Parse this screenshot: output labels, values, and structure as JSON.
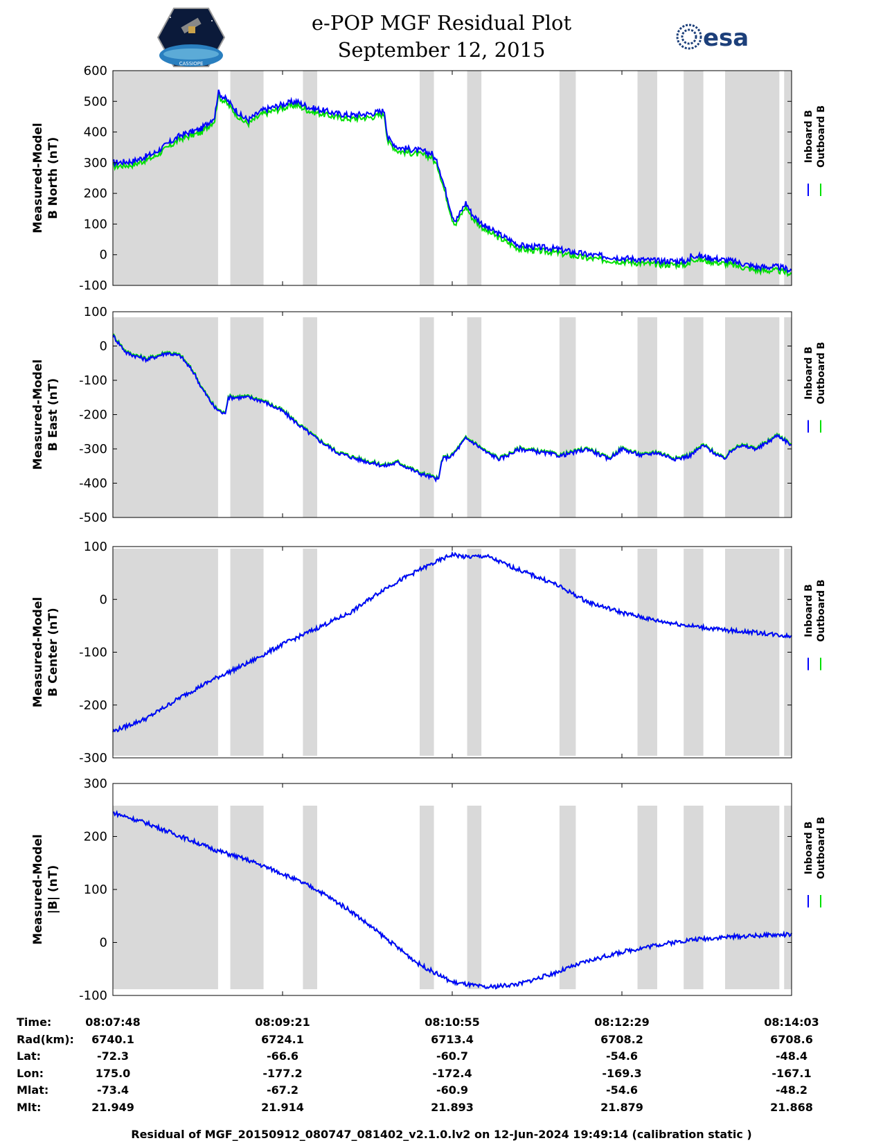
{
  "header": {
    "title_line1": "e-POP MGF Residual Plot",
    "title_line2": "September 12, 2015",
    "left_logo_text": "CASSIOPE",
    "right_logo_text": "esa"
  },
  "colors": {
    "inboard": "#0000ff",
    "outboard": "#00e000",
    "shade": "#d9d9d9"
  },
  "legend": {
    "inboard": "Inboard B",
    "outboard": "Outboard B"
  },
  "shaded_intervals": [
    [
      0,
      0.155
    ],
    [
      0.173,
      0.222
    ],
    [
      0.28,
      0.301
    ],
    [
      0.452,
      0.473
    ],
    [
      0.522,
      0.543
    ],
    [
      0.658,
      0.682
    ],
    [
      0.773,
      0.802
    ],
    [
      0.841,
      0.87
    ],
    [
      0.902,
      0.982
    ],
    [
      0.989,
      1.0
    ]
  ],
  "chart_data": [
    {
      "type": "line",
      "ylabel_line1": "Measured-Model",
      "ylabel_line2": "B North (nT)",
      "ylim": [
        -100,
        600
      ],
      "yticks": [
        "600",
        "500",
        "400",
        "300",
        "200",
        "100",
        "0",
        "-100"
      ],
      "noise": 10,
      "outboard_offset": -12,
      "x": [
        0,
        0.03,
        0.06,
        0.1,
        0.13,
        0.15,
        0.155,
        0.17,
        0.19,
        0.2,
        0.22,
        0.25,
        0.27,
        0.29,
        0.31,
        0.33,
        0.35,
        0.38,
        0.4,
        0.405,
        0.42,
        0.45,
        0.47,
        0.48,
        0.5,
        0.505,
        0.52,
        0.53,
        0.55,
        0.6,
        0.65,
        0.7,
        0.75,
        0.8,
        0.85,
        0.85,
        0.88,
        0.91,
        0.95,
        0.98,
        1.0
      ],
      "inboard": [
        300,
        305,
        330,
        390,
        410,
        450,
        530,
        500,
        450,
        440,
        470,
        490,
        500,
        480,
        470,
        460,
        455,
        460,
        470,
        380,
        350,
        340,
        330,
        290,
        130,
        110,
        170,
        130,
        90,
        30,
        20,
        0,
        -10,
        -20,
        -20,
        0,
        -10,
        -20,
        -40,
        -40,
        -50
      ],
      "series_names": [
        "Inboard B",
        "Outboard B"
      ]
    },
    {
      "type": "line",
      "ylabel_line1": "Measured-Model",
      "ylabel_line2": "B East (nT)",
      "ylim": [
        -500,
        100
      ],
      "yticks": [
        "100",
        "0",
        "-100",
        "-200",
        "-300",
        "-400",
        "-500"
      ],
      "noise": 6,
      "outboard_offset": 3,
      "x": [
        0,
        0.02,
        0.05,
        0.08,
        0.1,
        0.12,
        0.13,
        0.15,
        0.165,
        0.17,
        0.2,
        0.22,
        0.25,
        0.28,
        0.3,
        0.33,
        0.36,
        0.4,
        0.42,
        0.45,
        0.48,
        0.485,
        0.5,
        0.52,
        0.53,
        0.55,
        0.57,
        0.6,
        0.63,
        0.66,
        0.7,
        0.73,
        0.75,
        0.78,
        0.8,
        0.83,
        0.85,
        0.87,
        0.9,
        0.92,
        0.95,
        0.98,
        1.0
      ],
      "inboard": [
        30,
        -20,
        -40,
        -20,
        -30,
        -80,
        -120,
        -180,
        -200,
        -150,
        -150,
        -160,
        -190,
        -240,
        -270,
        -310,
        -330,
        -350,
        -340,
        -370,
        -390,
        -330,
        -320,
        -270,
        -280,
        -310,
        -330,
        -300,
        -310,
        -320,
        -300,
        -330,
        -300,
        -320,
        -310,
        -330,
        -320,
        -290,
        -330,
        -290,
        -300,
        -260,
        -290
      ],
      "series_names": [
        "Inboard B",
        "Outboard B"
      ]
    },
    {
      "type": "line",
      "ylabel_line1": "Measured-Model",
      "ylabel_line2": "B Center (nT)",
      "ylim": [
        -300,
        100
      ],
      "yticks": [
        "100",
        "0",
        "-100",
        "-200",
        "-300"
      ],
      "noise": 4,
      "outboard_offset": 0,
      "x": [
        0,
        0.05,
        0.1,
        0.15,
        0.2,
        0.25,
        0.3,
        0.35,
        0.4,
        0.45,
        0.5,
        0.52,
        0.55,
        0.6,
        0.65,
        0.7,
        0.75,
        0.8,
        0.85,
        0.9,
        0.95,
        1.0
      ],
      "inboard": [
        -250,
        -225,
        -185,
        -150,
        -120,
        -85,
        -55,
        -25,
        20,
        55,
        85,
        80,
        82,
        55,
        30,
        -5,
        -25,
        -40,
        -50,
        -58,
        -63,
        -70
      ],
      "series_names": [
        "Inboard B",
        "Outboard B"
      ]
    },
    {
      "type": "line",
      "ylabel_line1": "Measured-Model",
      "ylabel_line2": "|B| (nT)",
      "ylim": [
        -100,
        300
      ],
      "yticks": [
        "300",
        "200",
        "100",
        "0",
        "-100"
      ],
      "noise": 4,
      "outboard_offset": 0,
      "x": [
        0,
        0.05,
        0.1,
        0.15,
        0.2,
        0.25,
        0.3,
        0.35,
        0.4,
        0.45,
        0.5,
        0.55,
        0.6,
        0.65,
        0.7,
        0.75,
        0.8,
        0.85,
        0.9,
        0.95,
        1.0
      ],
      "inboard": [
        245,
        225,
        200,
        175,
        155,
        130,
        100,
        60,
        10,
        -40,
        -75,
        -85,
        -78,
        -58,
        -35,
        -18,
        -5,
        5,
        10,
        13,
        15
      ],
      "series_names": [
        "Inboard B",
        "Outboard B"
      ]
    }
  ],
  "info_table": {
    "labels": [
      "Time:",
      "Rad(km):",
      "Lat:",
      "Lon:",
      "Mlat:",
      "Mlt:"
    ],
    "columns": [
      [
        "08:07:48",
        "6740.1",
        "-72.3",
        "175.0",
        "-73.4",
        "21.949"
      ],
      [
        "08:09:21",
        "6724.1",
        "-66.6",
        "-177.2",
        "-67.2",
        "21.914"
      ],
      [
        "08:10:55",
        "6713.4",
        "-60.7",
        "-172.4",
        "-60.9",
        "21.893"
      ],
      [
        "08:12:29",
        "6708.2",
        "-54.6",
        "-169.3",
        "-54.6",
        "21.879"
      ],
      [
        "08:14:03",
        "6708.6",
        "-48.4",
        "-167.1",
        "-48.2",
        "21.868"
      ]
    ]
  },
  "footer": "Residual of MGF_20150912_080747_081402_v2.1.0.lv2 on 12-Jun-2024 19:49:14 (calibration static )"
}
